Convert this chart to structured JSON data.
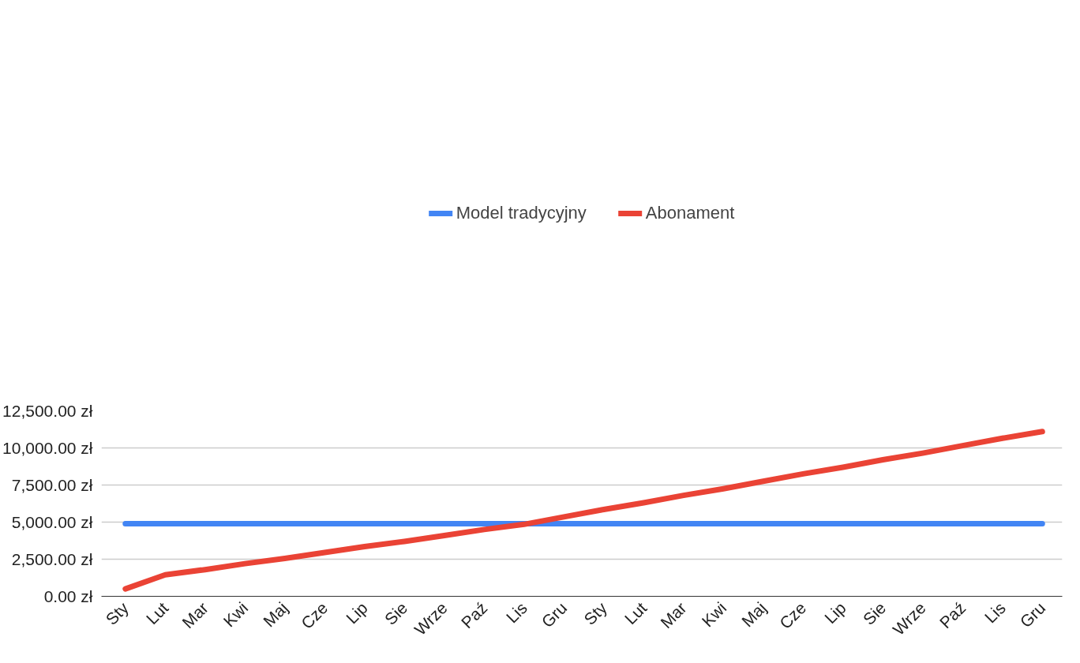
{
  "chart_data": {
    "type": "line",
    "categories": [
      "Sty",
      "Lut",
      "Mar",
      "Kwi",
      "Maj",
      "Cze",
      "Lip",
      "Sie",
      "Wrze",
      "Paź",
      "Lis",
      "Gru",
      "Sty",
      "Lut",
      "Mar",
      "Kwi",
      "Maj",
      "Cze",
      "Lip",
      "Sie",
      "Wrze",
      "Paź",
      "Lis",
      "Gru"
    ],
    "series": [
      {
        "name": "Model tradycyjny",
        "color": "#4285f4",
        "values": [
          4900,
          4900,
          4900,
          4900,
          4900,
          4900,
          4900,
          4900,
          4900,
          4900,
          4900,
          4900,
          4900,
          4900,
          4900,
          4900,
          4900,
          4900,
          4900,
          4900,
          4900,
          4900,
          4900,
          4900
        ]
      },
      {
        "name": "Abonament",
        "color": "#ea4335",
        "values": [
          500,
          1450,
          1800,
          2200,
          2550,
          2950,
          3350,
          3700,
          4100,
          4500,
          4850,
          5350,
          5850,
          6300,
          6800,
          7250,
          7750,
          8250,
          8700,
          9200,
          9650,
          10150,
          10650,
          11100
        ]
      }
    ],
    "ylim": [
      0,
      12500
    ],
    "yticks": [
      {
        "value": 0,
        "label": "0.00 zł"
      },
      {
        "value": 2500,
        "label": "2,500.00 zł"
      },
      {
        "value": 5000,
        "label": "5,000.00 zł"
      },
      {
        "value": 7500,
        "label": "7,500.00 zł"
      },
      {
        "value": 10000,
        "label": "10,000.00 zł"
      },
      {
        "value": 12500,
        "label": "12,500.00 zł"
      }
    ],
    "grid": "y",
    "legend": "top",
    "marker": "none",
    "line_style": "solid"
  }
}
